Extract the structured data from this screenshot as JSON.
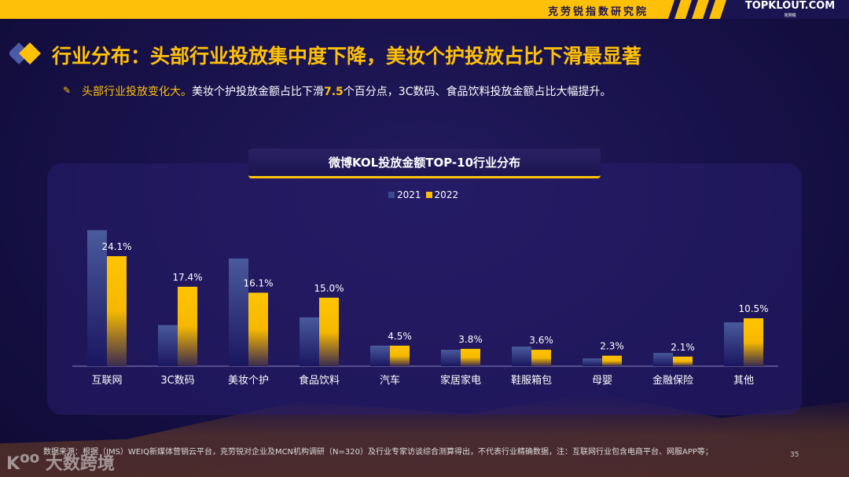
{
  "header": {
    "org": "克劳锐指数研究院",
    "logo": "TOPKLOUT.COM",
    "logo_sub": "克劳锐"
  },
  "title": "行业分布：头部行业投放集中度下降，美妆个护投放占比下滑最显著",
  "subtitle": {
    "lead": "头部行业投放变化大。",
    "part1": "美妆个护投放金额占比下滑",
    "value": "7.5",
    "part2": "个百分点，3C数码、食品饮料投放金额占比大幅提升。"
  },
  "footer": {
    "source": "数据来源：根据（IMS）WEIQ新媒体营销云平台，克劳锐对企业及MCN机构调研（N=320）及行业专家访谈综合测算得出，不代表行业精确数据，注：互联网行业包含电商平台、网服APP等；",
    "page": "35",
    "watermark": "大数跨境"
  },
  "colors": {
    "accent": "#ffc107",
    "series2021": "#3d4a8c",
    "series2022": "#ffc107",
    "background": "#161046"
  },
  "chart_data": {
    "type": "bar",
    "title": "微博KOL投放金额TOP-10行业分布",
    "categories": [
      "互联网",
      "3C数码",
      "美妆个护",
      "食品饮料",
      "汽车",
      "家居家电",
      "鞋服箱包",
      "母婴",
      "金融保险",
      "其他"
    ],
    "series": [
      {
        "name": "2021",
        "values": [
          29.8,
          9.0,
          23.6,
          10.7,
          4.5,
          3.6,
          4.3,
          1.7,
          2.9,
          9.6
        ]
      },
      {
        "name": "2022",
        "values": [
          24.1,
          17.4,
          16.1,
          15.0,
          4.5,
          3.8,
          3.6,
          2.3,
          2.1,
          10.5
        ],
        "labels": [
          "24.1%",
          "17.4%",
          "16.1%",
          "15.0%",
          "4.5%",
          "3.8%",
          "3.6%",
          "2.3%",
          "2.1%",
          "10.5%"
        ]
      }
    ],
    "legend": "top-center",
    "grid": false,
    "ylim": [
      0,
      32
    ]
  }
}
